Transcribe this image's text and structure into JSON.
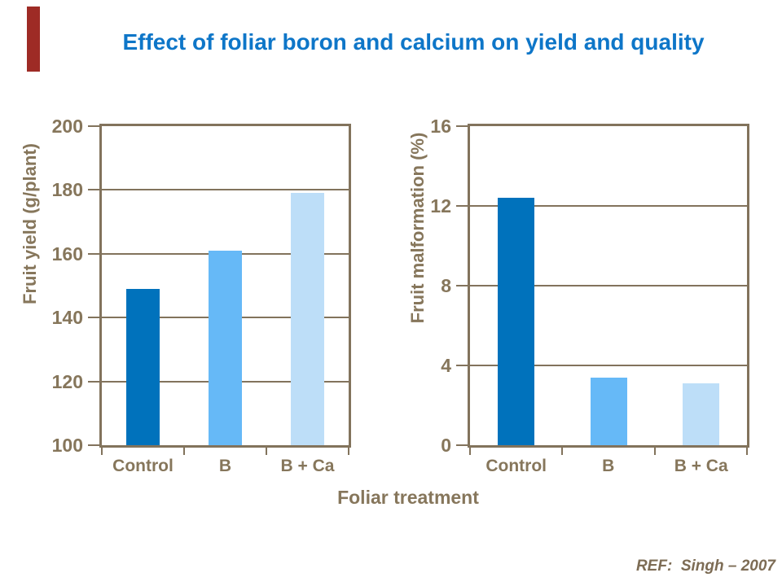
{
  "slide": {
    "title": "Effect of foliar boron and calcium on yield and quality",
    "title_color": "#0e76c8",
    "accent_bar_color": "#9e2b25",
    "shared_xlabel": "Foliar treatment",
    "reference": "REF:  Singh – 2007",
    "reference_color": "#7d6c55"
  },
  "chart_data": [
    {
      "type": "bar",
      "title": "",
      "ylabel": "Fruit yield (g/plant)",
      "xlabel": "Foliar treatment",
      "categories": [
        "Control",
        "B",
        "B + Ca"
      ],
      "values": [
        149,
        161,
        179
      ],
      "ylim": [
        100,
        200
      ],
      "ytick_step": 20,
      "yticks": [
        100,
        120,
        140,
        160,
        180,
        200
      ],
      "grid": true,
      "legend": "none",
      "bar_colors": [
        "#0072bc",
        "#66b9f7",
        "#bddef8"
      ],
      "axis_color": "#82735c",
      "text_color": "#86765b"
    },
    {
      "type": "bar",
      "title": "",
      "ylabel": "Fruit malformation (%)",
      "xlabel": "Foliar treatment",
      "categories": [
        "Control",
        "B",
        "B + Ca"
      ],
      "values": [
        12.4,
        3.4,
        3.1
      ],
      "ylim": [
        0,
        16
      ],
      "ytick_step": 4,
      "yticks": [
        0,
        4,
        8,
        12,
        16
      ],
      "grid": true,
      "legend": "none",
      "bar_colors": [
        "#0072bc",
        "#66b9f7",
        "#bddef8"
      ],
      "axis_color": "#82735c",
      "text_color": "#86765b"
    }
  ]
}
